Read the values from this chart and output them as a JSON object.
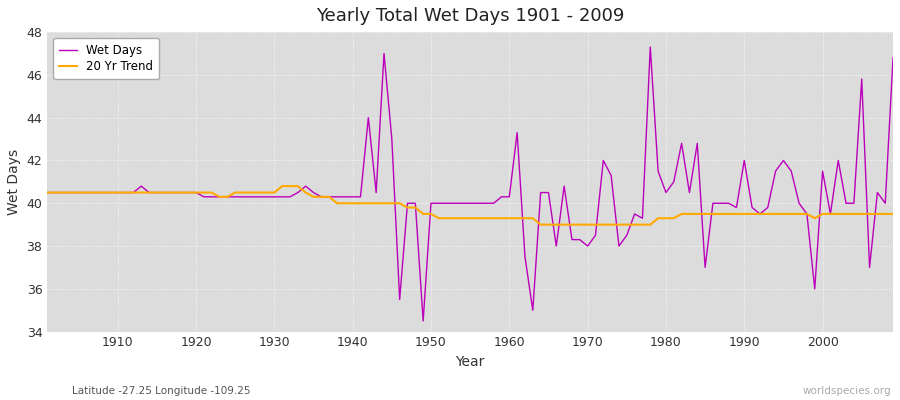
{
  "title": "Yearly Total Wet Days 1901 - 2009",
  "xlabel": "Year",
  "ylabel": "Wet Days",
  "subtitle": "Latitude -27.25 Longitude -109.25",
  "watermark": "worldspecies.org",
  "ylim": [
    34,
    48
  ],
  "xlim": [
    1901,
    2009
  ],
  "yticks": [
    34,
    36,
    38,
    40,
    42,
    44,
    46,
    48
  ],
  "xticks": [
    1910,
    1920,
    1930,
    1940,
    1950,
    1960,
    1970,
    1980,
    1990,
    2000
  ],
  "wet_days_color": "#bb00bb",
  "trend_color": "#ffaa00",
  "bg_color": "#dcdcdc",
  "fig_color": "#ffffff",
  "legend_labels": [
    "Wet Days",
    "20 Yr Trend"
  ],
  "wet_days": {
    "1901": 40.5,
    "1902": 40.5,
    "1903": 40.5,
    "1904": 40.5,
    "1905": 40.5,
    "1906": 40.5,
    "1907": 40.5,
    "1908": 40.5,
    "1909": 40.5,
    "1910": 40.5,
    "1911": 40.5,
    "1912": 40.5,
    "1913": 40.8,
    "1914": 40.5,
    "1915": 40.5,
    "1916": 40.5,
    "1917": 40.5,
    "1918": 40.5,
    "1919": 40.5,
    "1920": 40.5,
    "1921": 40.3,
    "1922": 40.3,
    "1923": 40.3,
    "1924": 40.3,
    "1925": 40.3,
    "1926": 40.3,
    "1927": 40.3,
    "1928": 40.3,
    "1929": 40.3,
    "1930": 40.3,
    "1931": 40.3,
    "1932": 40.3,
    "1933": 40.5,
    "1934": 40.8,
    "1935": 40.5,
    "1936": 40.3,
    "1937": 40.3,
    "1938": 40.3,
    "1939": 40.3,
    "1940": 40.3,
    "1941": 40.3,
    "1942": 44.0,
    "1943": 40.5,
    "1944": 47.0,
    "1945": 43.0,
    "1946": 35.5,
    "1947": 40.0,
    "1948": 40.0,
    "1949": 34.5,
    "1950": 40.0,
    "1951": 40.0,
    "1952": 40.0,
    "1953": 40.0,
    "1954": 40.0,
    "1955": 40.0,
    "1956": 40.0,
    "1957": 40.0,
    "1958": 40.0,
    "1959": 40.3,
    "1960": 40.3,
    "1961": 43.3,
    "1962": 37.5,
    "1963": 35.0,
    "1964": 40.5,
    "1965": 40.5,
    "1966": 38.0,
    "1967": 40.8,
    "1968": 38.3,
    "1969": 38.3,
    "1970": 38.0,
    "1971": 38.5,
    "1972": 42.0,
    "1973": 41.3,
    "1974": 38.0,
    "1975": 38.5,
    "1976": 39.5,
    "1977": 39.3,
    "1978": 47.3,
    "1979": 41.5,
    "1980": 40.5,
    "1981": 41.0,
    "1982": 42.8,
    "1983": 40.5,
    "1984": 42.8,
    "1985": 37.0,
    "1986": 40.0,
    "1987": 40.0,
    "1988": 40.0,
    "1989": 39.8,
    "1990": 42.0,
    "1991": 39.8,
    "1992": 39.5,
    "1993": 39.8,
    "1994": 41.5,
    "1995": 42.0,
    "1996": 41.5,
    "1997": 40.0,
    "1998": 39.5,
    "1999": 36.0,
    "2000": 41.5,
    "2001": 39.5,
    "2002": 42.0,
    "2003": 40.0,
    "2004": 40.0,
    "2005": 45.8,
    "2006": 37.0,
    "2007": 40.5,
    "2008": 40.0,
    "2009": 46.8
  },
  "trend": {
    "1901": 40.5,
    "1902": 40.5,
    "1903": 40.5,
    "1904": 40.5,
    "1905": 40.5,
    "1906": 40.5,
    "1907": 40.5,
    "1908": 40.5,
    "1909": 40.5,
    "1910": 40.5,
    "1911": 40.5,
    "1912": 40.5,
    "1913": 40.5,
    "1914": 40.5,
    "1915": 40.5,
    "1916": 40.5,
    "1917": 40.5,
    "1918": 40.5,
    "1919": 40.5,
    "1920": 40.5,
    "1921": 40.5,
    "1922": 40.5,
    "1923": 40.3,
    "1924": 40.3,
    "1925": 40.5,
    "1926": 40.5,
    "1927": 40.5,
    "1928": 40.5,
    "1929": 40.5,
    "1930": 40.5,
    "1931": 40.8,
    "1932": 40.8,
    "1933": 40.8,
    "1934": 40.5,
    "1935": 40.3,
    "1936": 40.3,
    "1937": 40.3,
    "1938": 40.0,
    "1939": 40.0,
    "1940": 40.0,
    "1941": 40.0,
    "1942": 40.0,
    "1943": 40.0,
    "1944": 40.0,
    "1945": 40.0,
    "1946": 40.0,
    "1947": 39.8,
    "1948": 39.8,
    "1949": 39.5,
    "1950": 39.5,
    "1951": 39.3,
    "1952": 39.3,
    "1953": 39.3,
    "1954": 39.3,
    "1955": 39.3,
    "1956": 39.3,
    "1957": 39.3,
    "1958": 39.3,
    "1959": 39.3,
    "1960": 39.3,
    "1961": 39.3,
    "1962": 39.3,
    "1963": 39.3,
    "1964": 39.0,
    "1965": 39.0,
    "1966": 39.0,
    "1967": 39.0,
    "1968": 39.0,
    "1969": 39.0,
    "1970": 39.0,
    "1971": 39.0,
    "1972": 39.0,
    "1973": 39.0,
    "1974": 39.0,
    "1975": 39.0,
    "1976": 39.0,
    "1977": 39.0,
    "1978": 39.0,
    "1979": 39.3,
    "1980": 39.3,
    "1981": 39.3,
    "1982": 39.5,
    "1983": 39.5,
    "1984": 39.5,
    "1985": 39.5,
    "1986": 39.5,
    "1987": 39.5,
    "1988": 39.5,
    "1989": 39.5,
    "1990": 39.5,
    "1991": 39.5,
    "1992": 39.5,
    "1993": 39.5,
    "1994": 39.5,
    "1995": 39.5,
    "1996": 39.5,
    "1997": 39.5,
    "1998": 39.5,
    "1999": 39.3,
    "2000": 39.5,
    "2001": 39.5,
    "2002": 39.5,
    "2003": 39.5,
    "2004": 39.5,
    "2005": 39.5,
    "2006": 39.5,
    "2007": 39.5,
    "2008": 39.5,
    "2009": 39.5
  }
}
